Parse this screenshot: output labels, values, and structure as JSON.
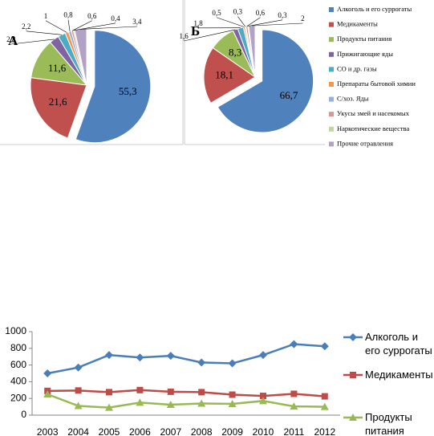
{
  "chart_data": [
    {
      "type": "pie",
      "label": "А",
      "values": [
        55.3,
        21.6,
        11.6,
        2.8,
        2.2,
        1,
        0.8,
        0.6,
        0.4,
        3.4
      ],
      "value_labels": [
        "55,3",
        "21,6",
        "11,6",
        "2,8",
        "2,2",
        "1",
        "0,8",
        "0,6",
        "0,4",
        "3,4"
      ],
      "colors": [
        "#4f81bd",
        "#c0504d",
        "#9bbb59",
        "#8064a2",
        "#4bacc6",
        "#f79646",
        "#95b3d7",
        "#d99694",
        "#c3d69b",
        "#b3a2c7"
      ]
    },
    {
      "type": "pie",
      "label": "Б",
      "categories": [
        "Алкоголь и его суррогаты",
        "Медикаменты",
        "Продукты питания",
        "Прижигающие яды",
        "СО и др. газы",
        "Препараты бытовой химии",
        "С/хоз. Яды",
        "Укусы змей и насекомых",
        "Наркотические вещества",
        "Прочие отравления"
      ],
      "values": [
        66.7,
        18.1,
        8.3,
        1.6,
        1.8,
        0.5,
        0.3,
        0.6,
        0.3,
        2
      ],
      "value_labels": [
        "66,7",
        "18,1",
        "8,3",
        "1,6",
        "1,8",
        "0,5",
        "0,3",
        "0,6",
        "0,3",
        "2"
      ],
      "colors": [
        "#4f81bd",
        "#c0504d",
        "#9bbb59",
        "#8064a2",
        "#4bacc6",
        "#f79646",
        "#95b3d7",
        "#d99694",
        "#c3d69b",
        "#b3a2c7"
      ],
      "legend": "right"
    },
    {
      "type": "line",
      "categories": [
        "2003",
        "2004",
        "2005",
        "2006",
        "2007",
        "2008",
        "2009",
        "2010",
        "2011",
        "2012"
      ],
      "series": [
        {
          "name": "Алкоголь и его суррогаты",
          "color": "#4a7ebb",
          "marker": "diamond",
          "values": [
            500,
            570,
            720,
            690,
            710,
            630,
            620,
            720,
            850,
            825
          ]
        },
        {
          "name": "Медикаменты",
          "color": "#be4b48",
          "marker": "square",
          "values": [
            290,
            295,
            275,
            300,
            280,
            275,
            245,
            230,
            255,
            225
          ]
        },
        {
          "name": "Продукты питания",
          "color": "#98b954",
          "marker": "triangle",
          "values": [
            250,
            110,
            90,
            150,
            125,
            140,
            135,
            170,
            105,
            100
          ]
        }
      ],
      "ylim": [
        0,
        1000
      ],
      "yticks": [
        0,
        200,
        400,
        600,
        800,
        1000
      ],
      "grid": false,
      "legend": "right"
    }
  ]
}
